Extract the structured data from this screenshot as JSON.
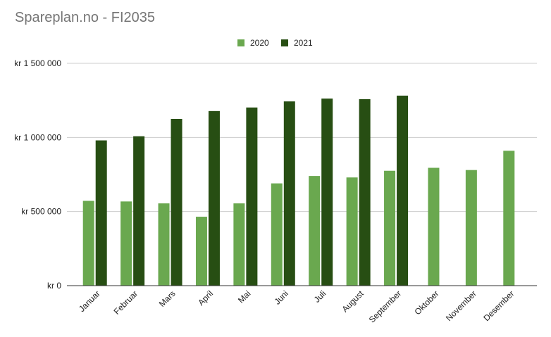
{
  "chart_data": {
    "type": "bar",
    "title": "Spareplan.no - FI2035",
    "xlabel": "",
    "ylabel": "",
    "categories": [
      "Januar",
      "Februar",
      "Mars",
      "April",
      "Mai",
      "Juni",
      "Juli",
      "August",
      "September",
      "Oktober",
      "November",
      "Desember"
    ],
    "series": [
      {
        "name": "2020",
        "color": "#6aa84f",
        "values": [
          572000,
          568000,
          555000,
          465000,
          555000,
          690000,
          740000,
          730000,
          775000,
          795000,
          780000,
          910000
        ]
      },
      {
        "name": "2021",
        "color": "#274e13",
        "values": [
          980000,
          1008000,
          1125000,
          1178000,
          1202000,
          1243000,
          1262000,
          1258000,
          1282000,
          null,
          null,
          null
        ]
      }
    ],
    "ylim": [
      0,
      1500000
    ],
    "yticks": [
      {
        "value": 0,
        "label": "kr    0"
      },
      {
        "value": 500000,
        "label": "kr  500 000"
      },
      {
        "value": 1000000,
        "label": "kr 1 000 000"
      },
      {
        "value": 1500000,
        "label": "kr 1 500 000"
      }
    ],
    "grid": true,
    "legend_position": "top-center"
  }
}
